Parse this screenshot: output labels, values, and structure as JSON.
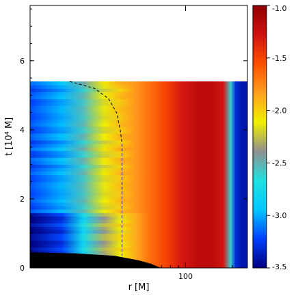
{
  "chart_data": {
    "type": "heatmap",
    "title": "",
    "xlabel": "r [M]",
    "ylabel": "t [10⁴ M]",
    "x_scale": "log",
    "xlim": [
      10,
      250
    ],
    "ylim": [
      0,
      7.6
    ],
    "x_ticks": [
      {
        "value": 100,
        "label": "100"
      }
    ],
    "y_ticks": [
      {
        "value": 0,
        "label": "0"
      },
      {
        "value": 2,
        "label": "2"
      },
      {
        "value": 4,
        "label": "4"
      },
      {
        "value": 6,
        "label": "6"
      }
    ],
    "data_t_max": 5.4,
    "colorbar": {
      "range": [
        -3.5,
        -1.0
      ],
      "ticks": [
        {
          "value": -1.0,
          "label": "-1.0"
        },
        {
          "value": -1.5,
          "label": "-1.5"
        },
        {
          "value": -2.0,
          "label": "-2.0"
        },
        {
          "value": -2.5,
          "label": "-2.5"
        },
        {
          "value": -3.0,
          "label": "-3.0"
        },
        {
          "value": -3.5,
          "label": "-3.5"
        }
      ],
      "colors": [
        "#000080",
        "#0040ff",
        "#00c8ff",
        "#20e0e0",
        "#909090",
        "#f0f000",
        "#ffa020",
        "#ff5000",
        "#d01010",
        "#900000"
      ]
    },
    "field_profile": {
      "description_of_columns": "log-radius grid: x = r [M], value = colour value in colorbar units",
      "r": [
        10,
        16,
        22,
        30,
        38,
        48,
        60,
        75,
        95,
        120,
        150,
        175,
        195,
        210,
        230,
        250
      ],
      "value": [
        -3.2,
        -3.0,
        -2.55,
        -2.15,
        -1.95,
        -1.8,
        -1.65,
        -1.5,
        -1.3,
        -1.2,
        -1.2,
        -1.3,
        -2.6,
        -3.3,
        -3.4,
        -3.4
      ]
    },
    "dashed_curve": {
      "r": [
        18,
        26,
        32,
        36,
        38,
        39,
        39,
        39
      ],
      "t": [
        5.4,
        5.2,
        4.9,
        4.5,
        4.0,
        3.6,
        2.0,
        0.35
      ]
    },
    "black_region_boundary": {
      "r": [
        10,
        20,
        35,
        50,
        60,
        66,
        70
      ],
      "t": [
        0.45,
        0.42,
        0.35,
        0.22,
        0.12,
        0.04,
        0.0
      ]
    }
  }
}
